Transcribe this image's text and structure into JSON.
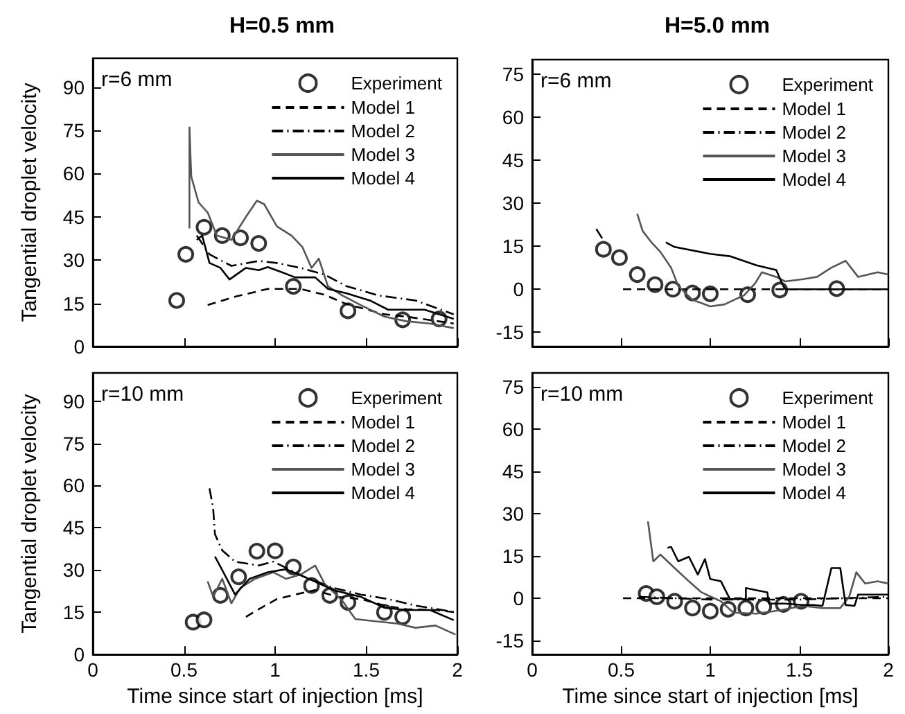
{
  "chart_data": [
    {
      "type": "line",
      "title": "H=0.5 mm",
      "ylabel": "Tangential droplet velocity",
      "annotations": [
        "r=6 mm"
      ],
      "xlim": [
        0,
        2
      ],
      "xticks": [
        0,
        0.5,
        1,
        1.5,
        2
      ],
      "ylim": [
        0,
        100
      ],
      "yticks": [
        0,
        15,
        30,
        45,
        60,
        75,
        90
      ],
      "tick_labels": "y",
      "grid": false,
      "legend": "top right",
      "series": [
        {
          "name": "Experiment",
          "type": "scatter",
          "marker": "circle",
          "color": "#000000",
          "x": [
            0.46,
            0.51,
            0.61,
            0.71,
            0.81,
            0.91,
            1.1,
            1.4,
            1.7,
            1.9
          ],
          "values": [
            16,
            32,
            41.4,
            38.5,
            37.7,
            35.8,
            20.9,
            12.4,
            9.3,
            9.6
          ]
        },
        {
          "name": "Model 1",
          "line_style": "dashed",
          "marker": "none",
          "color": "#000000",
          "x": [
            0.63,
            0.78,
            0.96,
            1.14,
            1.27,
            1.39,
            1.6,
            1.72,
            1.98
          ],
          "values": [
            14.4,
            17.3,
            20,
            20,
            18,
            14.8,
            11.2,
            10.4,
            8
          ]
        },
        {
          "name": "Model 2",
          "line_style": "dashdot",
          "marker": "none",
          "color": "#000000",
          "x": [
            0.57,
            0.64,
            0.76,
            0.91,
            1.01,
            1.14,
            1.27,
            1.39,
            1.57,
            1.77,
            1.98
          ],
          "values": [
            38.5,
            32,
            28,
            29.7,
            29,
            27.3,
            25,
            21,
            17.7,
            16,
            11.2
          ]
        },
        {
          "name": "Model 3",
          "line_style": "solid",
          "marker": "none",
          "color": "#555555",
          "x": [
            0.53,
            0.53,
            0.54,
            0.58,
            0.63,
            0.68,
            0.76,
            0.84,
            0.9,
            0.94,
            1.01,
            1.09,
            1.15,
            1.2,
            1.24,
            1.29,
            1.37,
            1.47,
            1.6,
            1.72,
            1.85,
            1.98
          ],
          "values": [
            41,
            76,
            59,
            50,
            46.5,
            38.5,
            37,
            45,
            50.6,
            49.4,
            41.7,
            38.5,
            34.5,
            27.3,
            30.5,
            20.9,
            17.7,
            14.4,
            10.4,
            8.8,
            8,
            6.4
          ]
        },
        {
          "name": "Model 4",
          "line_style": "solid",
          "marker": "none",
          "color": "#000000",
          "x": [
            0.57,
            0.6,
            0.64,
            0.7,
            0.75,
            0.84,
            0.91,
            0.96,
            1.04,
            1.11,
            1.22,
            1.29,
            1.39,
            1.52,
            1.62,
            1.72,
            1.82,
            1.98
          ],
          "values": [
            37,
            38.5,
            29,
            27.3,
            23.3,
            27.3,
            26.5,
            27.6,
            25.7,
            24,
            24,
            20,
            18.5,
            16,
            12.8,
            12.8,
            12.8,
            9.6
          ]
        }
      ]
    },
    {
      "type": "line",
      "title": "H=5.0 mm",
      "annotations": [
        "r=6 mm"
      ],
      "xlim": [
        0,
        2
      ],
      "xticks": [
        0,
        0.5,
        1,
        1.5,
        2
      ],
      "ylim": [
        -20,
        80
      ],
      "yticks": [
        -15,
        0,
        15,
        30,
        45,
        60,
        75
      ],
      "tick_labels": "y",
      "grid": false,
      "legend": "top right",
      "series": [
        {
          "name": "Experiment",
          "type": "scatter",
          "marker": "circle",
          "color": "#000000",
          "x": [
            0.4,
            0.49,
            0.59,
            0.69,
            0.79,
            0.9,
            1.0,
            1.21,
            1.39,
            1.71
          ],
          "values": [
            13.9,
            11,
            5.1,
            1.6,
            0,
            -1.3,
            -1.6,
            -1.9,
            -0.3,
            0.2
          ]
        },
        {
          "name": "Model 1",
          "line_style": "dashed",
          "marker": "none",
          "color": "#000000",
          "x": [
            0.51,
            2.0
          ],
          "values": [
            0,
            0
          ]
        },
        {
          "name": "Model 2",
          "line_style": "dashdot",
          "marker": "none",
          "color": "#000000",
          "x": [
            0.36,
            0.4
          ],
          "values": [
            21,
            17
          ]
        },
        {
          "name": "Model 3",
          "line_style": "solid",
          "marker": "none",
          "color": "#555555",
          "x": [
            0.59,
            0.62,
            0.67,
            0.72,
            0.78,
            0.82,
            0.9,
            1.0,
            1.08,
            1.19,
            1.25,
            1.29,
            1.37,
            1.42,
            1.52,
            1.6,
            1.68,
            1.76,
            1.83,
            1.94,
            2.0
          ],
          "values": [
            26.3,
            20.3,
            16.3,
            13,
            7.5,
            1.1,
            -3.7,
            -6,
            -5.3,
            -2.1,
            1.9,
            5.9,
            4.3,
            2.7,
            3.5,
            4.3,
            7.5,
            9.9,
            4.3,
            5.9,
            5.1
          ]
        },
        {
          "name": "Model 4",
          "line_style": "solid",
          "marker": "none",
          "color": "#000000",
          "x": [
            0.75,
            0.8,
            1.0,
            1.11,
            1.26,
            1.37,
            1.41,
            1.42,
            2.0
          ],
          "values": [
            16.3,
            14.7,
            12.3,
            11.5,
            8.3,
            6.7,
            1.1,
            0,
            0
          ]
        }
      ]
    },
    {
      "type": "line",
      "xlabel": "Time since start of injection [ms]",
      "ylabel": "Tangential droplet velocity",
      "annotations": [
        "r=10 mm"
      ],
      "xlim": [
        0,
        2
      ],
      "xticks": [
        0,
        0.5,
        1,
        1.5,
        2
      ],
      "ylim": [
        0,
        100
      ],
      "yticks": [
        0,
        15,
        30,
        45,
        60,
        75,
        90
      ],
      "grid": false,
      "legend": "top right",
      "series": [
        {
          "name": "Experiment",
          "type": "scatter",
          "marker": "circle",
          "color": "#000000",
          "x": [
            0.55,
            0.61,
            0.7,
            0.8,
            0.9,
            1.0,
            1.1,
            1.2,
            1.3,
            1.4,
            1.6,
            1.7
          ],
          "values": [
            11.5,
            12.3,
            21,
            27.6,
            36.7,
            36.8,
            31.1,
            24.5,
            21,
            18.5,
            15,
            13.4
          ]
        },
        {
          "name": "Model 1",
          "line_style": "dashed",
          "marker": "none",
          "color": "#000000",
          "x": [
            0.84,
            0.91,
            1.01,
            1.11,
            1.22,
            1.34,
            1.47,
            1.6,
            1.72,
            1.88,
            1.99
          ],
          "values": [
            13.4,
            16.1,
            19.7,
            21.3,
            22.9,
            20.5,
            19.7,
            17.4,
            16.1,
            15.8,
            15
          ]
        },
        {
          "name": "Model 2",
          "line_style": "dashdot",
          "marker": "none",
          "color": "#000000",
          "x": [
            0.64,
            0.66,
            0.67,
            0.71,
            0.78,
            0.91,
            0.99,
            1.06,
            1.16,
            1.32,
            1.47,
            1.62,
            1.77,
            1.99
          ],
          "values": [
            59,
            52,
            42.7,
            37,
            33,
            31.6,
            33,
            30.8,
            27.6,
            23.7,
            21.3,
            19.7,
            17.4,
            15
          ]
        },
        {
          "name": "Model 3",
          "line_style": "solid",
          "marker": "none",
          "color": "#555555",
          "x": [
            0.63,
            0.66,
            0.71,
            0.76,
            0.81,
            0.89,
            0.99,
            1.06,
            1.14,
            1.22,
            1.27,
            1.37,
            1.44,
            1.55,
            1.67,
            1.77,
            1.88,
            1.99
          ],
          "values": [
            26,
            20.5,
            26.9,
            18.2,
            23.7,
            26.9,
            29.2,
            26.9,
            28.4,
            31.6,
            25.3,
            19,
            12.6,
            11.8,
            11,
            9.5,
            10.3,
            7.1
          ]
        },
        {
          "name": "Model 4",
          "line_style": "solid",
          "marker": "none",
          "color": "#000000",
          "x": [
            0.67,
            0.71,
            0.78,
            0.86,
            0.96,
            1.06,
            1.16,
            1.32,
            1.47,
            1.6,
            1.72,
            1.85,
            1.98
          ],
          "values": [
            34.8,
            30,
            21.3,
            26.9,
            29.2,
            30.3,
            27.6,
            22.9,
            20.5,
            16.6,
            15.8,
            15.8,
            12.2
          ]
        }
      ]
    },
    {
      "type": "line",
      "xlabel": "Time since start of injection [ms]",
      "annotations": [
        "r=10 mm"
      ],
      "xlim": [
        0,
        2
      ],
      "xticks": [
        0,
        0.5,
        1,
        1.5,
        2
      ],
      "ylim": [
        -20,
        80
      ],
      "yticks": [
        -15,
        0,
        15,
        30,
        45,
        60,
        75
      ],
      "grid": false,
      "legend": "top right",
      "series": [
        {
          "name": "Experiment",
          "type": "scatter",
          "marker": "circle",
          "color": "#000000",
          "x": [
            0.64,
            0.7,
            0.8,
            0.9,
            1.0,
            1.1,
            1.2,
            1.3,
            1.41,
            1.51
          ],
          "values": [
            1.7,
            0.5,
            -1.1,
            -3.5,
            -4.6,
            -3.9,
            -3.5,
            -3,
            -2.2,
            -1.1
          ]
        },
        {
          "name": "Model 1",
          "line_style": "dashed",
          "marker": "none",
          "color": "#000000",
          "x": [
            0.51,
            2.0
          ],
          "values": [
            0,
            0
          ]
        },
        {
          "name": "Model 2",
          "line_style": "dashdot",
          "marker": "none",
          "color": "#000000",
          "x": [
            0.6,
            1.0,
            1.5,
            2.0
          ],
          "values": [
            0.5,
            -0.5,
            -0.5,
            0.5
          ]
        },
        {
          "name": "Model 3",
          "line_style": "solid",
          "marker": "none",
          "color": "#555555",
          "x": [
            0.65,
            0.68,
            0.72,
            0.8,
            0.88,
            0.95,
            1.06,
            1.13,
            1.26,
            1.39,
            1.52,
            1.63,
            1.73,
            1.78,
            1.82,
            1.87,
            1.94,
            2.0
          ],
          "values": [
            27.3,
            13.1,
            15.5,
            10.7,
            6,
            2.1,
            -1.1,
            -5.1,
            -5.5,
            -4.3,
            -2.7,
            -3.5,
            -3.5,
            0.5,
            9.2,
            5.2,
            6,
            5.2
          ]
        },
        {
          "name": "Model 4",
          "line_style": "solid",
          "marker": "none",
          "color": "#000000",
          "x": [
            0.76,
            0.78,
            0.82,
            0.88,
            0.93,
            0.97,
            1.0,
            1.06,
            1.11,
            1.2,
            1.2,
            1.26,
            1.32,
            1.33,
            1.42,
            1.52,
            1.58,
            1.63,
            1.68,
            1.73,
            1.76,
            1.81,
            1.83,
            2.0
          ],
          "values": [
            17.9,
            18.2,
            13.1,
            14.7,
            8.4,
            13.9,
            6.8,
            6,
            -0.3,
            -0.3,
            3.6,
            2.8,
            2.1,
            -1.9,
            -1.9,
            -2.4,
            -2.4,
            -2.7,
            10.7,
            10.7,
            -2.4,
            -2.7,
            1.3,
            1.3
          ]
        }
      ]
    }
  ]
}
